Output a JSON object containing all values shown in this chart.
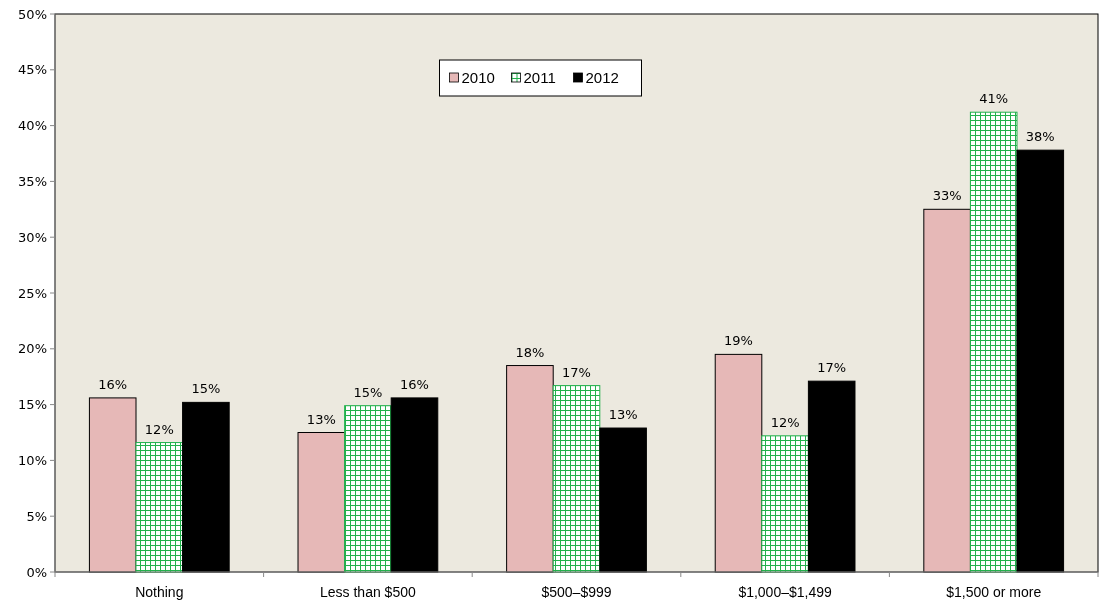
{
  "chart_data": {
    "type": "bar",
    "categories": [
      "Nothing",
      "Less than $500",
      "$500–$999",
      "$1,000–$1,499",
      "$1,500 or more"
    ],
    "series": [
      {
        "name": "2010",
        "color": "#e6b8b7",
        "values": [
          15.6,
          12.5,
          18.5,
          19.5,
          32.5
        ],
        "value_labels": [
          "16%",
          "13%",
          "18%",
          "19%",
          "33%"
        ]
      },
      {
        "name": "2011",
        "color": "#22b14c",
        "values": [
          11.6,
          14.9,
          16.7,
          12.2,
          41.2
        ],
        "value_labels": [
          "12%",
          "15%",
          "17%",
          "12%",
          "41%"
        ]
      },
      {
        "name": "2012",
        "color": "#000000",
        "values": [
          15.2,
          15.6,
          12.9,
          17.1,
          37.8
        ],
        "value_labels": [
          "15%",
          "16%",
          "13%",
          "17%",
          "38%"
        ]
      }
    ],
    "ylim": [
      0,
      50
    ],
    "yticks": [
      {
        "value": 0,
        "label": "0%"
      },
      {
        "value": 5,
        "label": "5%"
      },
      {
        "value": 10,
        "label": "10%"
      },
      {
        "value": 15,
        "label": "15%"
      },
      {
        "value": 20,
        "label": "20%"
      },
      {
        "value": 25,
        "label": "25%"
      },
      {
        "value": 30,
        "label": "30%"
      },
      {
        "value": 35,
        "label": "35%"
      },
      {
        "value": 40,
        "label": "40%"
      },
      {
        "value": 45,
        "label": "45%"
      },
      {
        "value": 50,
        "label": "50%"
      }
    ],
    "legend": "top"
  }
}
